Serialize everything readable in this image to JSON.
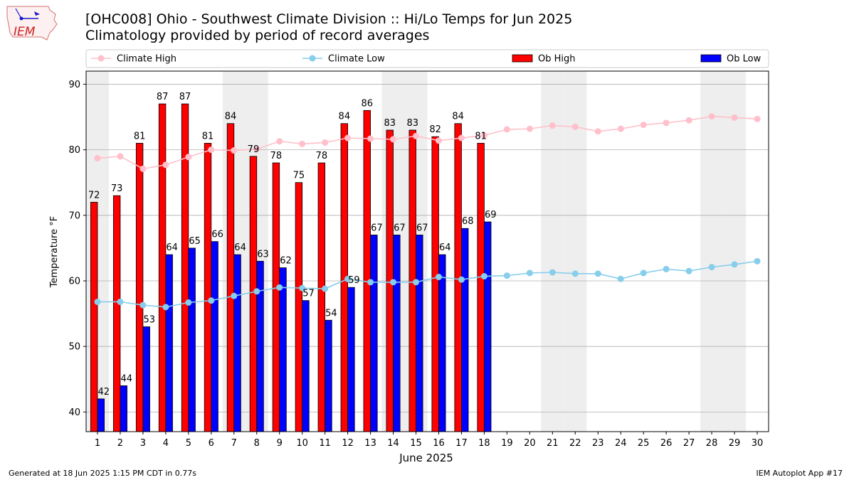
{
  "header": {
    "title": "[OHC008] Ohio - Southwest Climate Division :: Hi/Lo Temps for Jun 2025",
    "subtitle": "Climatology provided by period of record averages",
    "logo_text": "IEM"
  },
  "footer": {
    "generated": "Generated at 18 Jun 2025 1:15 PM CDT in 0.77s",
    "app": "IEM Autoplot App #17"
  },
  "colors": {
    "ob_high": "#ff0000",
    "ob_low": "#0000ff",
    "climate_high": "#ffc0cb",
    "climate_low": "#87ceeb",
    "weekend_shade": "#eeeeee",
    "grid": "#b0b0b0"
  },
  "chart_data": {
    "type": "bar",
    "xlabel": "June 2025",
    "ylabel": "Temperature °F",
    "ylim": [
      37,
      92
    ],
    "xlim": [
      0.5,
      30.5
    ],
    "yticks": [
      40,
      50,
      60,
      70,
      80,
      90
    ],
    "days": [
      1,
      2,
      3,
      4,
      5,
      6,
      7,
      8,
      9,
      10,
      11,
      12,
      13,
      14,
      15,
      16,
      17,
      18,
      19,
      20,
      21,
      22,
      23,
      24,
      25,
      26,
      27,
      28,
      29,
      30
    ],
    "weekend_days": [
      1,
      7,
      8,
      14,
      15,
      21,
      22,
      28,
      29
    ],
    "grid": "horizontal",
    "legend_position": "top",
    "legend": [
      {
        "label": "Climate High",
        "kind": "line",
        "color": "#ffc0cb"
      },
      {
        "label": "Climate Low",
        "kind": "line",
        "color": "#87ceeb"
      },
      {
        "label": "Ob High",
        "kind": "bar",
        "color": "#ff0000"
      },
      {
        "label": "Ob Low",
        "kind": "bar",
        "color": "#0000ff"
      }
    ],
    "ob_high": [
      72,
      73,
      81,
      87,
      87,
      81,
      84,
      79,
      78,
      75,
      78,
      84,
      86,
      83,
      83,
      82,
      84,
      81
    ],
    "ob_low": [
      42,
      44,
      53,
      64,
      65,
      66,
      64,
      63,
      62,
      57,
      54,
      59,
      67,
      67,
      67,
      64,
      68,
      69
    ],
    "climate_high": [
      78.7,
      79.0,
      77.1,
      77.7,
      78.9,
      80.0,
      79.9,
      80.1,
      81.3,
      80.9,
      81.1,
      81.8,
      81.7,
      81.6,
      82.1,
      81.4,
      81.8,
      82.2,
      83.1,
      83.2,
      83.7,
      83.5,
      82.8,
      83.2,
      83.8,
      84.1,
      84.5,
      85.1,
      84.9,
      84.7
    ],
    "climate_low": [
      56.8,
      56.8,
      56.3,
      56.0,
      56.7,
      57.0,
      57.7,
      58.4,
      59.0,
      58.9,
      58.8,
      60.3,
      59.8,
      59.8,
      59.8,
      60.6,
      60.2,
      60.7,
      60.8,
      61.2,
      61.3,
      61.1,
      61.1,
      60.3,
      61.2,
      61.8,
      61.5,
      62.1,
      62.5,
      63.0
    ]
  }
}
